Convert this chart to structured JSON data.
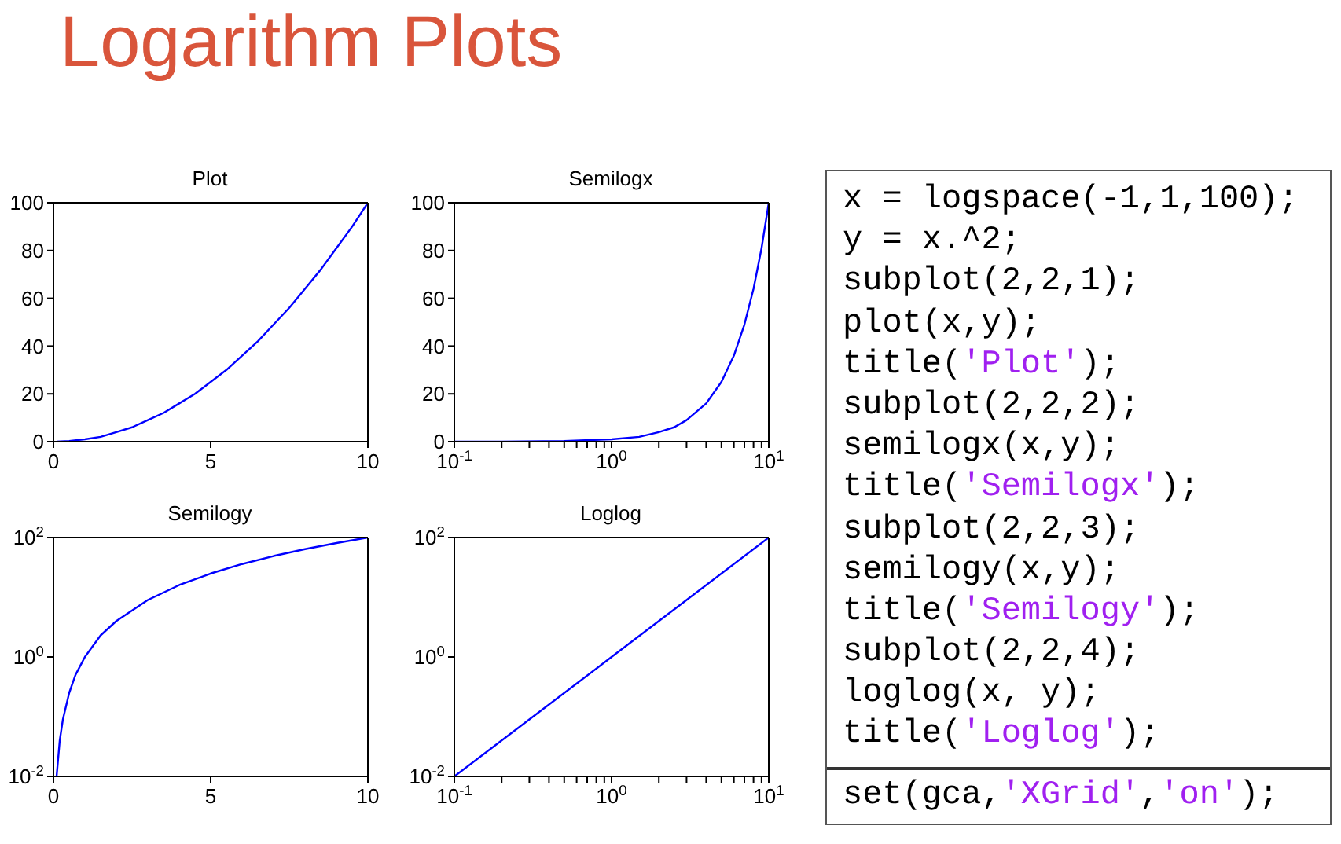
{
  "chart_data": [
    {
      "type": "other",
      "title": "Logarithm Plots"
    },
    {
      "type": "line",
      "title": "Plot",
      "color": "#0000ff",
      "x": [
        0.1,
        0.5,
        1,
        1.5,
        2,
        2.5,
        3,
        3.5,
        4,
        4.5,
        5,
        5.5,
        6,
        6.5,
        7,
        7.5,
        8,
        8.5,
        9,
        9.5,
        10
      ],
      "values": [
        0,
        0.3,
        1,
        2,
        4,
        6,
        9,
        12,
        16,
        20,
        25,
        30,
        36,
        42,
        49,
        56,
        64,
        72,
        81,
        90,
        100
      ],
      "xlim": [
        0,
        10
      ],
      "xticks": [
        0,
        5,
        10
      ],
      "ylim": [
        0,
        100
      ],
      "yticks": [
        0,
        20,
        40,
        60,
        80,
        100
      ]
    },
    {
      "type": "line",
      "title": "Semilogx",
      "color": "#0000ff",
      "log": "x",
      "x": [
        0.1,
        0.2,
        0.5,
        1,
        1.5,
        2,
        2.5,
        3,
        4,
        5,
        6,
        7,
        8,
        9,
        10
      ],
      "values": [
        0,
        0,
        0.3,
        1,
        2,
        4,
        6,
        9,
        16,
        25,
        36,
        49,
        64,
        81,
        100
      ],
      "xlim": [
        0.1,
        10
      ],
      "xticks": [
        {
          "value": 0.1,
          "label": "10$^{-1}$"
        },
        {
          "value": 0.2,
          "label": null
        },
        {
          "value": 0.3,
          "label": null
        },
        {
          "value": 0.4,
          "label": null
        },
        {
          "value": 0.5,
          "label": null
        },
        {
          "value": 0.6,
          "label": null
        },
        {
          "value": 0.7,
          "label": null
        },
        {
          "value": 0.8,
          "label": null
        },
        {
          "value": 0.9,
          "label": null
        },
        {
          "value": 1,
          "label": "10$^{0}$"
        },
        {
          "value": 2,
          "label": null
        },
        {
          "value": 3,
          "label": null
        },
        {
          "value": 4,
          "label": null
        },
        {
          "value": 5,
          "label": null
        },
        {
          "value": 6,
          "label": null
        },
        {
          "value": 7,
          "label": null
        },
        {
          "value": 8,
          "label": null
        },
        {
          "value": 9,
          "label": null
        },
        {
          "value": 10,
          "label": "10$^{1}$"
        }
      ],
      "ylim": [
        0,
        100
      ],
      "yticks": [
        0,
        20,
        40,
        60,
        80,
        100
      ]
    },
    {
      "type": "line",
      "title": "Semilogy",
      "color": "#0000ff",
      "log": "y",
      "x": [
        0.1,
        0.2,
        0.3,
        0.5,
        0.7,
        1,
        1.5,
        2,
        3,
        4,
        5,
        6,
        7,
        8,
        9,
        10
      ],
      "values": [
        0.01,
        0.04,
        0.09,
        0.25,
        0.5,
        1,
        2.3,
        4,
        9,
        16,
        25,
        36,
        49,
        64,
        81,
        100
      ],
      "xlim": [
        0,
        10
      ],
      "xticks": [
        0,
        5,
        10
      ],
      "ylim": [
        0.01,
        100
      ],
      "yticks": [
        {
          "value": 0.01,
          "label": "10$^{-2}$"
        },
        {
          "value": 1,
          "label": "10$^{0}$"
        },
        {
          "value": 100,
          "label": "10$^{2}$"
        }
      ]
    },
    {
      "type": "line",
      "title": "Loglog",
      "color": "#0000ff",
      "log": "xy",
      "x": [
        0.1,
        0.3,
        1,
        3,
        10
      ],
      "values": [
        0.01,
        0.09,
        1,
        9,
        100
      ],
      "xlim": [
        0.1,
        10
      ],
      "xticks": [
        {
          "value": 0.1,
          "label": "10$^{-1}$"
        },
        {
          "value": 0.2,
          "label": null
        },
        {
          "value": 0.3,
          "label": null
        },
        {
          "value": 0.4,
          "label": null
        },
        {
          "value": 0.5,
          "label": null
        },
        {
          "value": 0.6,
          "label": null
        },
        {
          "value": 0.7,
          "label": null
        },
        {
          "value": 0.8,
          "label": null
        },
        {
          "value": 0.9,
          "label": null
        },
        {
          "value": 1,
          "label": "10$^{0}$"
        },
        {
          "value": 2,
          "label": null
        },
        {
          "value": 3,
          "label": null
        },
        {
          "value": 4,
          "label": null
        },
        {
          "value": 5,
          "label": null
        },
        {
          "value": 6,
          "label": null
        },
        {
          "value": 7,
          "label": null
        },
        {
          "value": 8,
          "label": null
        },
        {
          "value": 9,
          "label": null
        },
        {
          "value": 10,
          "label": "10$^{1}$"
        }
      ],
      "ylim": [
        0.01,
        100
      ],
      "yticks": [
        {
          "value": 0.01,
          "label": "10$^{-2}$"
        },
        {
          "value": 1,
          "label": "10$^{0}$"
        },
        {
          "value": 100,
          "label": "10$^{2}$"
        }
      ]
    },
    {
      "type": "other",
      "annotations": [
        "x = logspace(-1,1,100);",
        "y = x.^2;",
        "subplot(2,2,1);",
        "plot(x,y);",
        "title('Plot');",
        "subplot(2,2,2);",
        "semilogx(x,y);",
        "title('Semilogx');",
        "subplot(2,2,3);",
        "semilogy(x,y);",
        "title('Semilogy');",
        "subplot(2,2,4);",
        "loglog(x, y);",
        "title('Loglog');"
      ]
    },
    {
      "type": "other",
      "annotations": [
        "set(gca,'XGrid','on');"
      ]
    }
  ]
}
